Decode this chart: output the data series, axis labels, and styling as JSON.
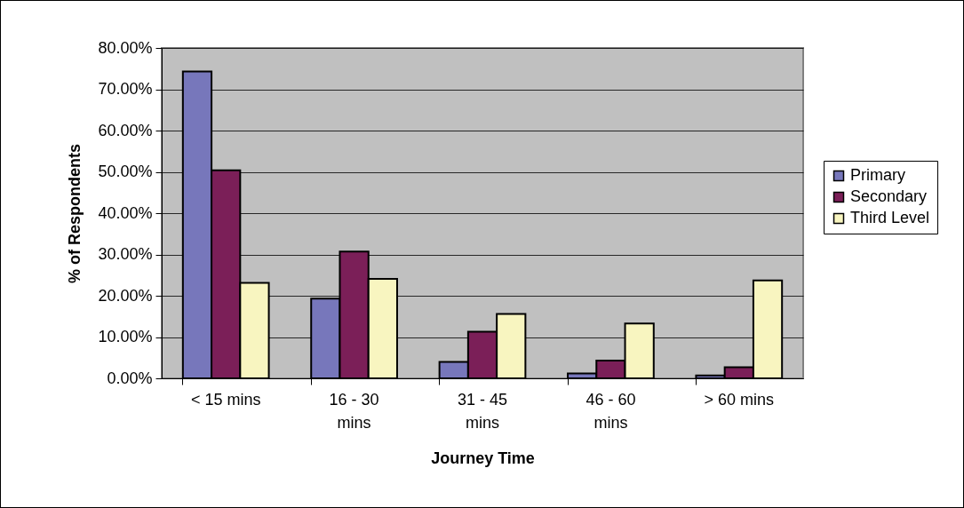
{
  "chart_data": {
    "type": "bar",
    "xlabel": "Journey Time",
    "ylabel": "% of Respondents",
    "categories": [
      "< 15 mins",
      "16 - 30 mins",
      "31 - 45 mins",
      "46 - 60 mins",
      "> 60 mins"
    ],
    "series": [
      {
        "name": "Primary",
        "color": "#7777bb",
        "values": [
          74.3,
          19.3,
          4.0,
          1.2,
          0.7
        ]
      },
      {
        "name": "Secondary",
        "color": "#7b1f58",
        "values": [
          50.4,
          30.7,
          11.3,
          4.3,
          2.7
        ]
      },
      {
        "name": "Third Level",
        "color": "#f8f5c0",
        "values": [
          23.1,
          24.1,
          15.6,
          13.3,
          23.7
        ]
      }
    ],
    "ylim": [
      0,
      80
    ],
    "yticks": [
      {
        "value": 0,
        "label": "0.00%"
      },
      {
        "value": 10,
        "label": "10.00%"
      },
      {
        "value": 20,
        "label": "20.00%"
      },
      {
        "value": 30,
        "label": "30.00%"
      },
      {
        "value": 40,
        "label": "40.00%"
      },
      {
        "value": 50,
        "label": "50.00%"
      },
      {
        "value": 60,
        "label": "60.00%"
      },
      {
        "value": 70,
        "label": "70.00%"
      },
      {
        "value": 80,
        "label": "80.00%"
      }
    ],
    "grid": "y",
    "legend": "right"
  }
}
